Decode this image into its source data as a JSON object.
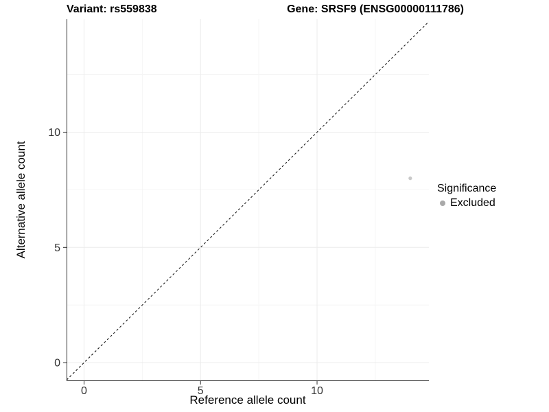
{
  "chart_data": {
    "type": "scatter",
    "title_variant": "Variant: rs559838",
    "title_gene": "Gene: SRSF9 (ENSG00000111786)",
    "xlabel": "Reference allele count",
    "ylabel": "Alternative allele count",
    "xlim": [
      -0.75,
      14.8
    ],
    "ylim": [
      -0.8,
      14.9
    ],
    "x_major_ticks": [
      0,
      5,
      10
    ],
    "y_major_ticks": [
      0,
      5,
      10
    ],
    "x_minor_ticks": [
      2.5,
      7.5,
      12.5
    ],
    "y_minor_ticks": [
      2.5,
      7.5,
      12.5
    ],
    "points": [
      {
        "x": 14,
        "y": 8,
        "significance": "Excluded"
      }
    ],
    "point_color": "#c9c9c9",
    "point_radius": 2.6,
    "identity_line": {
      "slope": 1,
      "intercept": 0,
      "style": "dashed",
      "color": "#1a1a1a"
    },
    "legend": {
      "title": "Significance",
      "entries": [
        {
          "label": "Excluded",
          "color": "#a9a9a9"
        }
      ]
    },
    "grid": {
      "major_color": "#ebebeb",
      "minor_color": "#f5f5f5"
    },
    "axis_color": "#2e2e2e",
    "tick_label_color": "#333333"
  }
}
